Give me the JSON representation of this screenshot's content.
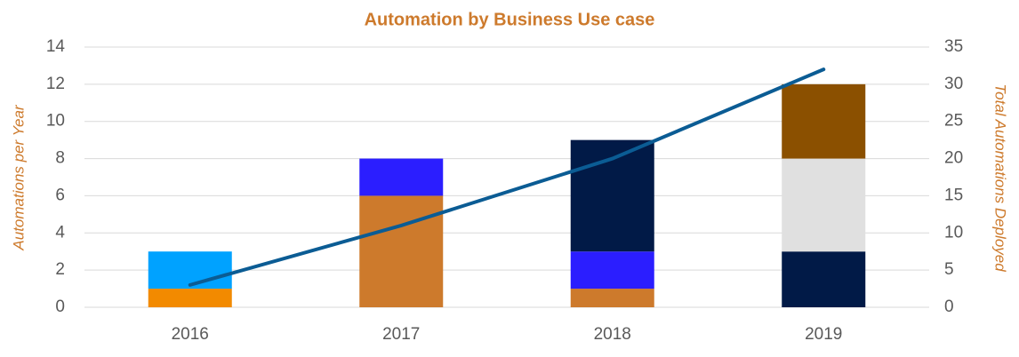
{
  "chart_data": {
    "type": "bar",
    "title": "Automation  by Business Use case",
    "y_label": "Automations per Year",
    "y2_label": "Total Automations Deployed",
    "categories": [
      "2016",
      "2017",
      "2018",
      "2019"
    ],
    "stacked": true,
    "grid": true,
    "ylim": [
      0,
      14
    ],
    "yticks": [
      0,
      2,
      4,
      6,
      8,
      10,
      12,
      14
    ],
    "y2lim": [
      0,
      35
    ],
    "y2ticks": [
      0,
      5,
      10,
      15,
      20,
      25,
      30,
      35
    ],
    "series": [
      {
        "color": "#f28a00",
        "values": [
          1,
          null,
          null,
          null
        ]
      },
      {
        "color": "#cd7a2c",
        "values": [
          null,
          6,
          1,
          null
        ]
      },
      {
        "color": "#00a2ff",
        "values": [
          2,
          null,
          null,
          null
        ]
      },
      {
        "color": "#2b1eff",
        "values": [
          null,
          2,
          2,
          null
        ]
      },
      {
        "color": "#011a47",
        "values": [
          null,
          null,
          6,
          3
        ]
      },
      {
        "color": "#e0e0e0",
        "values": [
          null,
          null,
          null,
          5
        ]
      },
      {
        "color": "#8b5000",
        "values": [
          null,
          null,
          null,
          4
        ]
      },
      {
        "type": "line",
        "axis": "y2",
        "color": "#0b5c94",
        "values": [
          3,
          11,
          20,
          32
        ]
      }
    ]
  }
}
